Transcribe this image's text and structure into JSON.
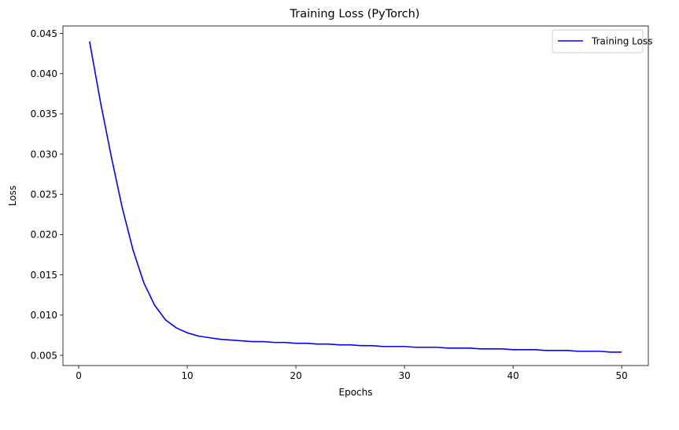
{
  "chart_data": {
    "type": "line",
    "title": "Training Loss (PyTorch)",
    "xlabel": "Epochs",
    "ylabel": "Loss",
    "xlim": [
      -1.45,
      52.45
    ],
    "ylim": [
      0.00373,
      0.04593
    ],
    "xticks": [
      0,
      10,
      20,
      30,
      40,
      50
    ],
    "xtick_labels": [
      "0",
      "10",
      "20",
      "30",
      "40",
      "50"
    ],
    "yticks": [
      0.005,
      0.01,
      0.015,
      0.02,
      0.025,
      0.03,
      0.035,
      0.04,
      0.045
    ],
    "ytick_labels": [
      "0.005",
      "0.010",
      "0.015",
      "0.020",
      "0.025",
      "0.030",
      "0.035",
      "0.040",
      "0.045"
    ],
    "grid": false,
    "legend_position": "top-right",
    "series": [
      {
        "name": "Training Loss",
        "color": "#0000ff",
        "x": [
          1,
          2,
          3,
          4,
          5,
          6,
          7,
          8,
          9,
          10,
          11,
          12,
          13,
          14,
          15,
          16,
          17,
          18,
          19,
          20,
          21,
          22,
          23,
          24,
          25,
          26,
          27,
          28,
          29,
          30,
          31,
          32,
          33,
          34,
          35,
          36,
          37,
          38,
          39,
          40,
          41,
          42,
          43,
          44,
          45,
          46,
          47,
          48,
          49,
          50
        ],
        "values": [
          0.044,
          0.0365,
          0.0297,
          0.0234,
          0.0181,
          0.014,
          0.0112,
          0.0094,
          0.0084,
          0.0078,
          0.0074,
          0.0072,
          0.007,
          0.0069,
          0.0068,
          0.0067,
          0.0067,
          0.0066,
          0.0066,
          0.0065,
          0.0065,
          0.0064,
          0.0064,
          0.0063,
          0.0063,
          0.0062,
          0.0062,
          0.0061,
          0.0061,
          0.0061,
          0.006,
          0.006,
          0.006,
          0.0059,
          0.0059,
          0.0059,
          0.0058,
          0.0058,
          0.0058,
          0.0057,
          0.0057,
          0.0057,
          0.0056,
          0.0056,
          0.0056,
          0.0055,
          0.0055,
          0.0055,
          0.0054,
          0.0054
        ]
      }
    ]
  }
}
